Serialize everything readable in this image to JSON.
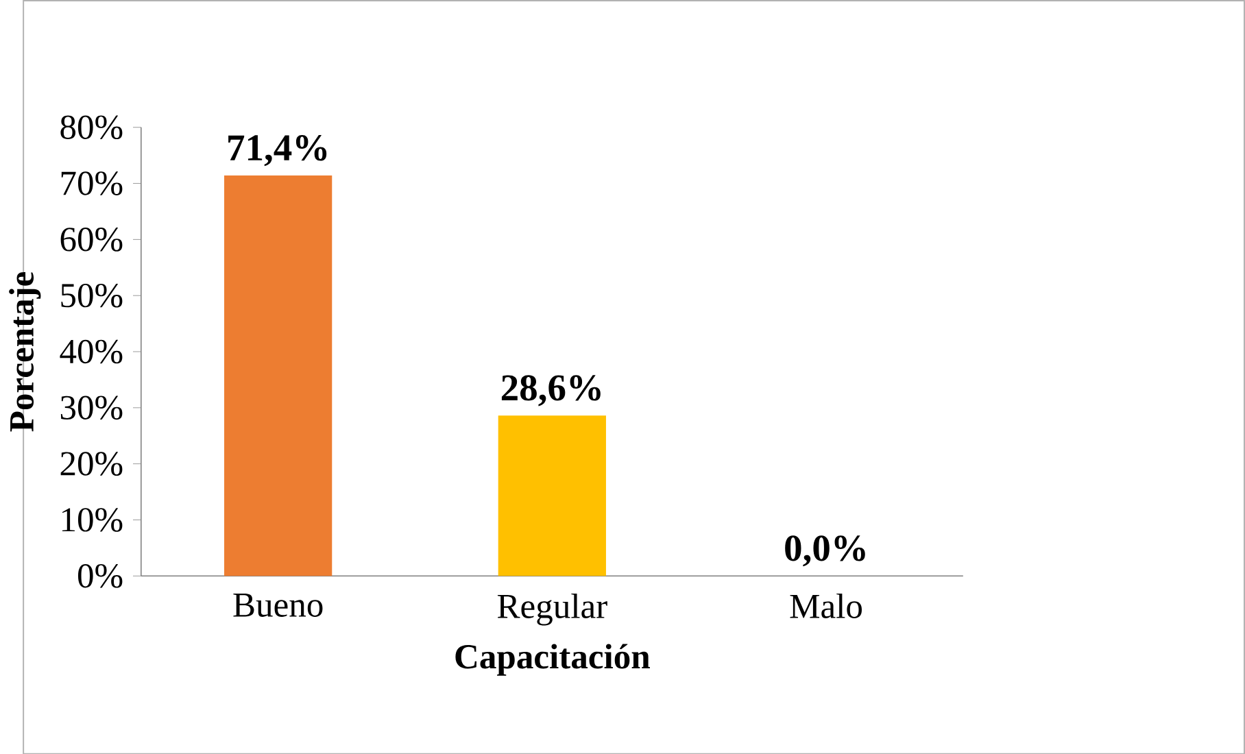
{
  "chart_data": {
    "type": "bar",
    "xlabel": "Capacitación",
    "ylabel": "Porcentaje",
    "categories": [
      "Bueno",
      "Regular",
      "Malo"
    ],
    "values": [
      71.4,
      28.6,
      0.0
    ],
    "colors": [
      "#ed7d31",
      "#ffc000",
      "#70ad47"
    ],
    "value_labels": [
      "71,4%",
      "28,6%",
      "0,0%"
    ],
    "ylim": [
      0,
      80
    ],
    "yticks": [
      {
        "value": 0,
        "label": "0%"
      },
      {
        "value": 10,
        "label": "10%"
      },
      {
        "value": 20,
        "label": "20%"
      },
      {
        "value": 30,
        "label": "30%"
      },
      {
        "value": 40,
        "label": "40%"
      },
      {
        "value": 50,
        "label": "50%"
      },
      {
        "value": 60,
        "label": "60%"
      },
      {
        "value": 70,
        "label": "70%"
      },
      {
        "value": 80,
        "label": "80%"
      }
    ]
  }
}
